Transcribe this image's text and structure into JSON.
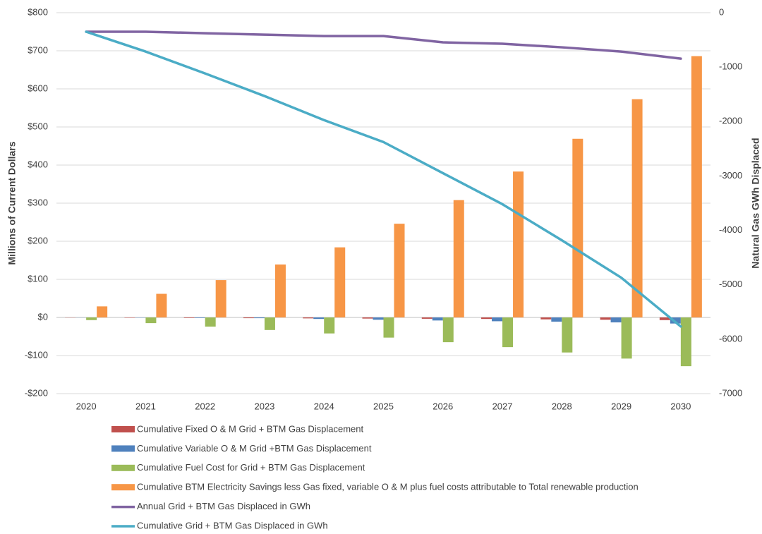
{
  "chart_data": {
    "type": "bar",
    "y_label": "Millions of Current Dollars",
    "y2_label": "Natural Gas GWh Displaced",
    "categories": [
      "2020",
      "2021",
      "2022",
      "2023",
      "2024",
      "2025",
      "2026",
      "2027",
      "2028",
      "2029",
      "2030"
    ],
    "ylim": [
      -200,
      800
    ],
    "yticks": [
      {
        "value": -200,
        "label": "-$200"
      },
      {
        "value": -100,
        "label": "-$100"
      },
      {
        "value": 0,
        "label": "$0"
      },
      {
        "value": 100,
        "label": "$100"
      },
      {
        "value": 200,
        "label": "$200"
      },
      {
        "value": 300,
        "label": "$300"
      },
      {
        "value": 400,
        "label": "$400"
      },
      {
        "value": 500,
        "label": "$500"
      },
      {
        "value": 600,
        "label": "$600"
      },
      {
        "value": 700,
        "label": "$700"
      },
      {
        "value": 800,
        "label": "$800"
      }
    ],
    "y2lim": [
      -7000,
      0
    ],
    "y2ticks": [
      -7000,
      -6000,
      -5000,
      -4000,
      -3000,
      -2000,
      -1000,
      0
    ],
    "grid": true,
    "legend": "bottom",
    "series": [
      {
        "name": "Cumulative Fixed O & M Grid + BTM Gas Displacement",
        "color": "#c0504d",
        "values": [
          -0.5,
          -1,
          -1.5,
          -2,
          -2.5,
          -3,
          -3.5,
          -4,
          -5,
          -6,
          -7
        ]
      },
      {
        "name": "Cumulative Variable O & M Grid +BTM Gas Displacement",
        "color": "#4f81bd",
        "values": [
          -0.3,
          -0.7,
          -1.5,
          -2,
          -4,
          -6,
          -8,
          -10,
          -11,
          -13,
          -16
        ]
      },
      {
        "name": "Cumulative Fuel Cost for Grid + BTM Gas Displacement",
        "color": "#9bbb59",
        "values": [
          -7,
          -15,
          -24,
          -33,
          -42,
          -53,
          -65,
          -78,
          -92,
          -108,
          -128
        ]
      },
      {
        "name": "Cumulative BTM Electricity Savings less Gas fixed, variable O & M plus fuel costs attributable to Total renewable production",
        "color": "#f79646",
        "values": [
          29,
          62,
          98,
          139,
          184,
          246,
          308,
          383,
          469,
          573,
          686
        ]
      },
      {
        "name": "Annual Grid + BTM Gas Displaced in GWh",
        "color": "#8064a2",
        "type": "line",
        "axis": "y2",
        "values": [
          -350,
          -350,
          -377,
          -403,
          -429,
          -429,
          -545,
          -571,
          -636,
          -714,
          -844
        ]
      },
      {
        "name": "Cumulative Grid + BTM Gas Displaced in GWh",
        "color": "#4bacc6",
        "type": "line",
        "axis": "y2",
        "values": [
          -350,
          -714,
          -1117,
          -1532,
          -1974,
          -2377,
          -2948,
          -3519,
          -4182,
          -4870,
          -5766
        ]
      }
    ]
  }
}
